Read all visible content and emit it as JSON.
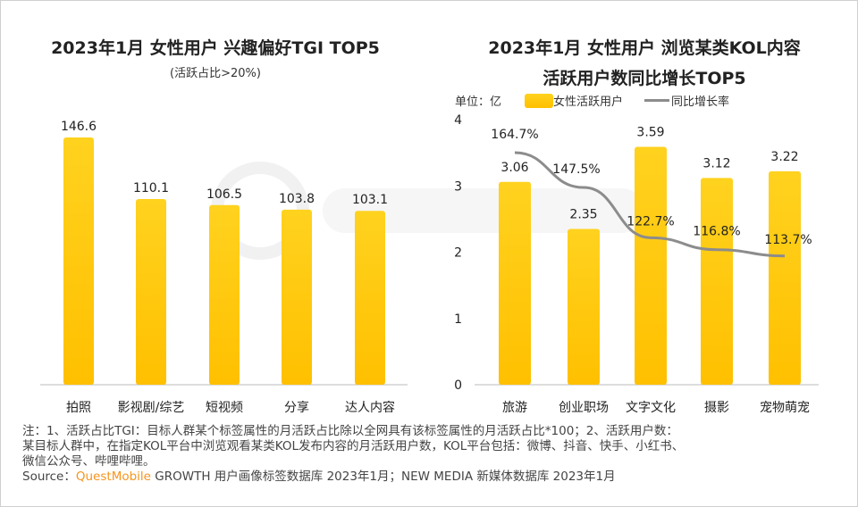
{
  "watermark": "QUESTMOBILE",
  "colors": {
    "bar": "#FFC000",
    "bar_top": "#FFD21F",
    "line": "#8C8C8C",
    "brand": "#F7941D"
  },
  "chart_data": [
    {
      "type": "bar",
      "title": "2023年1月 女性用户 兴趣偏好TGI TOP5",
      "subtitle": "(活跃占比>20%)",
      "categories": [
        "拍照",
        "影视剧/综艺",
        "短视频",
        "分享",
        "达人内容"
      ],
      "values": [
        146.6,
        110.1,
        106.5,
        103.8,
        103.1
      ],
      "data_labels": [
        "146.6",
        "110.1",
        "106.5",
        "103.8",
        "103.1"
      ],
      "grid": false
    },
    {
      "type": "bar+line",
      "title_line1": "2023年1月 女性用户 浏览某类KOL内容",
      "title_line2": "活跃用户数同比增长TOP5",
      "unit_label": "单位：亿",
      "categories": [
        "旅游",
        "创业职场",
        "文字文化",
        "摄影",
        "宠物萌宠"
      ],
      "series": [
        {
          "name": "女性活跃用户",
          "type": "bar",
          "values": [
            3.06,
            2.35,
            3.59,
            3.12,
            3.22
          ],
          "data_labels": [
            "3.06",
            "2.35",
            "3.59",
            "3.12",
            "3.22"
          ]
        },
        {
          "name": "同比增长率",
          "type": "line",
          "values": [
            164.7,
            147.5,
            122.7,
            116.8,
            113.7
          ],
          "data_labels": [
            "164.7%",
            "147.5%",
            "122.7%",
            "116.8%",
            "113.7%"
          ]
        }
      ],
      "ylim": [
        0,
        4
      ],
      "yticks": [
        "0",
        "1",
        "2",
        "3",
        "4"
      ],
      "legend": "top",
      "grid": false
    }
  ],
  "notes": {
    "line1": "注：1、活跃占比TGI：目标人群某个标签属性的月活跃占比除以全网具有该标签属性的月活跃占比*100；2、活跃用户数：",
    "line2": "某目标人群中，在指定KOL平台中浏览观看某类KOL发布内容的月活跃用户数，KOL平台包括：微博、抖音、快手、小红书、",
    "line3": "微信公众号、哔哩哔哩。",
    "source_prefix": "Source：",
    "source_brand": "QuestMobile",
    "source_rest": " GROWTH 用户画像标签数据库 2023年1月；NEW MEDIA 新媒体数据库 2023年1月"
  }
}
